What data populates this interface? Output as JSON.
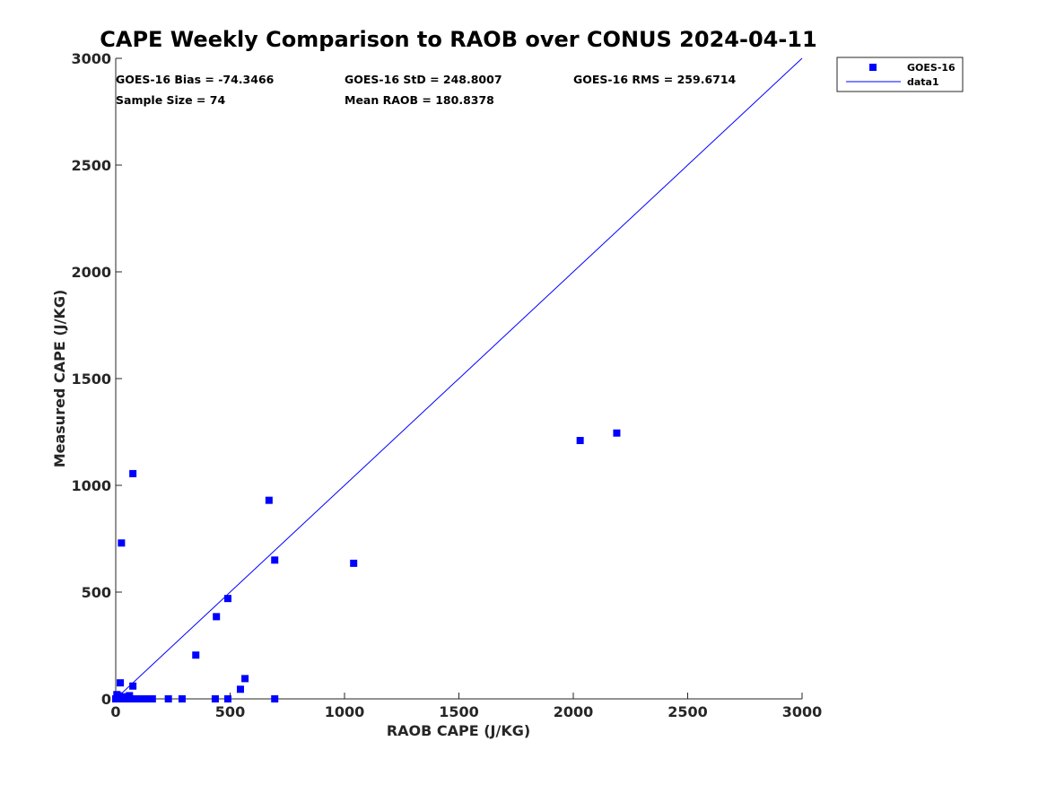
{
  "chart_data": {
    "type": "scatter",
    "title": "CAPE Weekly Comparison to RAOB over CONUS 2024-04-11",
    "xlabel": "RAOB CAPE (J/KG)",
    "ylabel": "Measured CAPE (J/KG)",
    "xlim": [
      0,
      3000
    ],
    "ylim": [
      0,
      3000
    ],
    "xticks": [
      0,
      500,
      1000,
      1500,
      2000,
      2500,
      3000
    ],
    "yticks": [
      0,
      500,
      1000,
      1500,
      2000,
      2500,
      3000
    ],
    "xtick_labels": [
      "0",
      "500",
      "1000",
      "1500",
      "2000",
      "2500",
      "3000"
    ],
    "ytick_labels": [
      "0",
      "500",
      "1000",
      "1500",
      "2000",
      "2500",
      "3000"
    ],
    "grid": false,
    "legend_position": "outside top-right",
    "colors": {
      "series": "#0000ff",
      "axes": "#262626",
      "line": "#0000ff"
    },
    "stats": [
      "GOES-16 Bias = -74.3466",
      "GOES-16 StD = 248.8007",
      "GOES-16 RMS = 259.6714",
      "Sample Size = 74",
      "Mean RAOB = 180.8378"
    ],
    "series": [
      {
        "name": "GOES-16",
        "type": "scatter",
        "marker": "square",
        "x": [
          75,
          25,
          20,
          75,
          5,
          10,
          30,
          60,
          15,
          10,
          5,
          20,
          40,
          0,
          25,
          3,
          8,
          12,
          18,
          35,
          50,
          55,
          65,
          70,
          90,
          100,
          110,
          120,
          130,
          140,
          150,
          160,
          230,
          290,
          350,
          440,
          490,
          435,
          490,
          545,
          565,
          670,
          695,
          695,
          1040,
          2030,
          2190
        ],
        "y": [
          1055,
          730,
          75,
          60,
          20,
          15,
          10,
          15,
          5,
          0,
          0,
          0,
          0,
          0,
          0,
          0,
          0,
          0,
          0,
          0,
          0,
          0,
          0,
          0,
          0,
          0,
          0,
          0,
          0,
          0,
          0,
          0,
          0,
          0,
          205,
          385,
          470,
          0,
          0,
          45,
          95,
          930,
          650,
          0,
          635,
          1210,
          1245
        ]
      },
      {
        "name": "data1",
        "type": "line",
        "x": [
          0,
          3000
        ],
        "y": [
          0,
          3000
        ]
      }
    ]
  }
}
